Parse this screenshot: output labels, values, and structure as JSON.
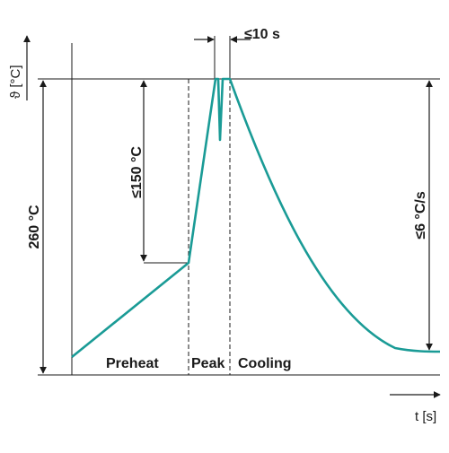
{
  "diagram": {
    "y_axis_label": "ϑ [°C]",
    "x_axis_label": "t [s]",
    "peak_temperature_label": "260 °C",
    "preheat_rise_label": "≤150 °C",
    "peak_duration_label": "≤10 s",
    "cooling_rate_label": "≤6 °C/s",
    "phases": [
      "Preheat",
      "Peak",
      "Cooling"
    ],
    "curve_color": "#1a9b96"
  }
}
